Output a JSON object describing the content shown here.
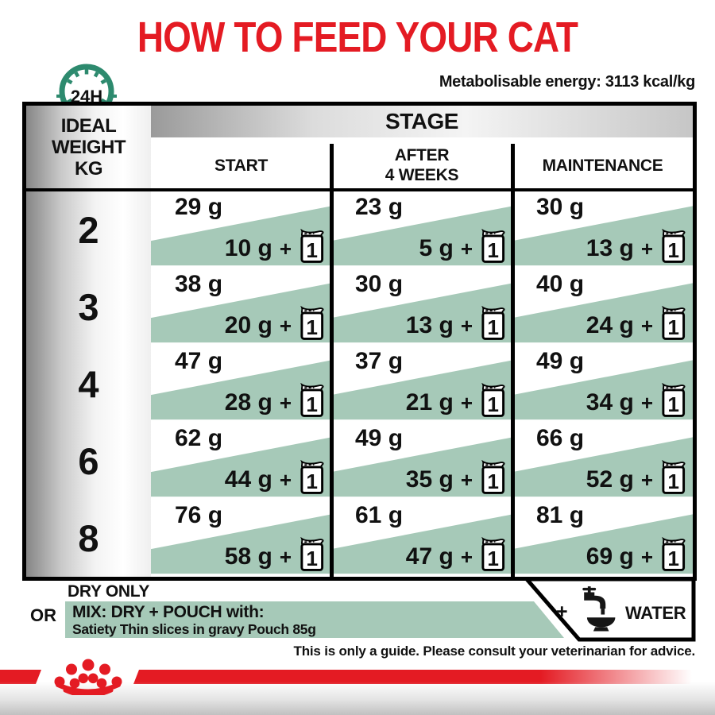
{
  "title": "HOW TO FEED YOUR CAT",
  "energy_note": "Metabolisable energy: 3113 kcal/kg",
  "clock": {
    "label": "24H"
  },
  "table": {
    "stage_header": "STAGE",
    "weight_header_lines": [
      "IDEAL",
      "WEIGHT",
      "KG"
    ],
    "column_headers": {
      "start": [
        "START"
      ],
      "after": [
        "AFTER",
        "4 WEEKS"
      ],
      "maintenance": [
        "MAINTENANCE"
      ]
    },
    "rows": [
      {
        "weight": "2",
        "cells": [
          {
            "dry": "29 g",
            "mix": "10 g"
          },
          {
            "dry": "23 g",
            "mix": "5 g"
          },
          {
            "dry": "30 g",
            "mix": "13 g"
          }
        ]
      },
      {
        "weight": "3",
        "cells": [
          {
            "dry": "38 g",
            "mix": "20 g"
          },
          {
            "dry": "30 g",
            "mix": "13 g"
          },
          {
            "dry": "40 g",
            "mix": "24 g"
          }
        ]
      },
      {
        "weight": "4",
        "cells": [
          {
            "dry": "47 g",
            "mix": "28 g"
          },
          {
            "dry": "37 g",
            "mix": "21 g"
          },
          {
            "dry": "49 g",
            "mix": "34 g"
          }
        ]
      },
      {
        "weight": "6",
        "cells": [
          {
            "dry": "62 g",
            "mix": "44 g"
          },
          {
            "dry": "49 g",
            "mix": "35 g"
          },
          {
            "dry": "66 g",
            "mix": "52 g"
          }
        ]
      },
      {
        "weight": "8",
        "cells": [
          {
            "dry": "76 g",
            "mix": "58 g"
          },
          {
            "dry": "61 g",
            "mix": "47 g"
          },
          {
            "dry": "81 g",
            "mix": "69 g"
          }
        ]
      }
    ]
  },
  "labels": {
    "plus": "+",
    "pouch_count": "1"
  },
  "legend": {
    "dry_only": "DRY ONLY",
    "or": "OR",
    "mix_title": "MIX: DRY + POUCH with:",
    "mix_subtitle": "Satiety Thin slices in gravy Pouch 85g",
    "water_plus": "+",
    "water": "WATER"
  },
  "footer": {
    "guide_note": "This is only a guide. Please consult your veterinarian for advice."
  },
  "icons": {
    "clock": "24h-timer-clock",
    "pouch": "wet-food-pouch-x1",
    "water": "tap-pouring-into-bowl",
    "brand": "royal-canin-crown"
  },
  "colors": {
    "accent_red": "#e41b23",
    "pouch_green": "#a6c9b8",
    "clock_teal": "#2d8a6e"
  }
}
